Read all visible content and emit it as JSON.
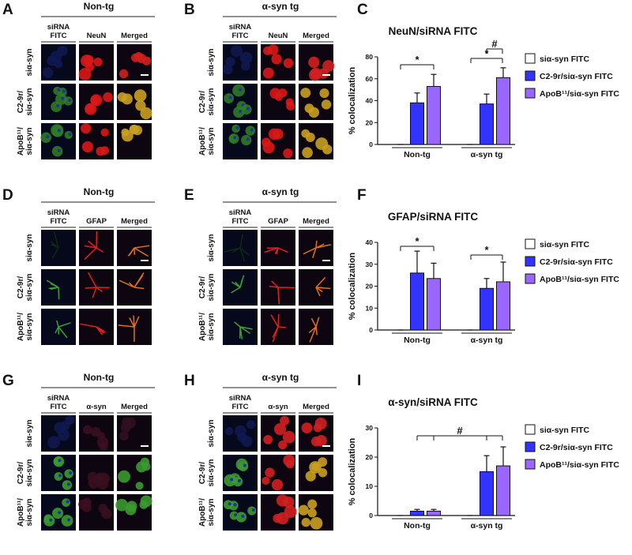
{
  "micrographs": [
    {
      "label": "A",
      "title": "Non-tg",
      "columns": [
        [
          "siRNA",
          "FITC"
        ],
        [
          "NeuN"
        ],
        [
          "Merged"
        ]
      ],
      "rows": [
        [
          "siα-syn"
        ],
        [
          "C2-9r/",
          "siα-syn"
        ],
        [
          "ApoB¹¹/",
          "siα-syn"
        ]
      ]
    },
    {
      "label": "B",
      "title": "α-syn tg",
      "columns": [
        [
          "siRNA",
          "FITC"
        ],
        [
          "NeuN"
        ],
        [
          "Merged"
        ]
      ],
      "rows": [
        [
          "siα-syn"
        ],
        [
          "C2-9r/",
          "siα-syn"
        ],
        [
          "ApoB¹¹/",
          "siα-syn"
        ]
      ]
    },
    {
      "label": "D",
      "title": "Non-tg",
      "columns": [
        [
          "siRNA",
          "FITC"
        ],
        [
          "GFAP"
        ],
        [
          "Merged"
        ]
      ],
      "rows": [
        [
          "siα-syn"
        ],
        [
          "C2-9r/",
          "siα-syn"
        ],
        [
          "ApoB¹¹/",
          "siα-syn"
        ]
      ]
    },
    {
      "label": "E",
      "title": "α-syn tg",
      "columns": [
        [
          "siRNA",
          "FITC"
        ],
        [
          "GFAP"
        ],
        [
          "Merged"
        ]
      ],
      "rows": [
        [
          "siα-syn"
        ],
        [
          "C2-9r/",
          "siα-syn"
        ],
        [
          "ApoB¹¹/",
          "siα-syn"
        ]
      ]
    },
    {
      "label": "G",
      "title": "Non-tg",
      "columns": [
        [
          "siRNA",
          "FITC"
        ],
        [
          "α-syn"
        ],
        [
          "Merged"
        ]
      ],
      "rows": [
        [
          "siα-syn"
        ],
        [
          "C2-9r/",
          "siα-syn"
        ],
        [
          "ApoB¹¹/",
          "siα-syn"
        ]
      ]
    },
    {
      "label": "H",
      "title": "α-syn tg",
      "columns": [
        [
          "siRNA",
          "FITC"
        ],
        [
          "α-syn"
        ],
        [
          "Merged"
        ]
      ],
      "rows": [
        [
          "siα-syn"
        ],
        [
          "C2-9r/",
          "siα-syn"
        ],
        [
          "ApoB¹¹/",
          "siα-syn"
        ]
      ]
    }
  ],
  "chart_data": [
    {
      "type": "bar",
      "label": "C",
      "title": "NeuN/siRNA FITC",
      "y_label": "% colocalization",
      "categories": [
        "Non-tg",
        "α-syn tg"
      ],
      "ylim": [
        0,
        80
      ],
      "yticks": [
        0,
        20,
        40,
        60,
        80
      ],
      "series": [
        {
          "name": "siα-syn FITC",
          "color": "#ffffff",
          "values": [
            0,
            0
          ],
          "errors": [
            0,
            0
          ]
        },
        {
          "name": "C2-9r/siα-syn FITC",
          "color": "#3333ff",
          "values": [
            38,
            37
          ],
          "errors": [
            9,
            9
          ]
        },
        {
          "name": "ApoB¹¹/siα-syn FITC",
          "color": "#9966ff",
          "values": [
            53,
            61
          ],
          "errors": [
            11,
            9
          ]
        }
      ],
      "annotations": [
        "*",
        "*",
        "#"
      ]
    },
    {
      "type": "bar",
      "label": "F",
      "title": "GFAP/siRNA FITC",
      "y_label": "% colocalization",
      "categories": [
        "Non-tg",
        "α-syn tg"
      ],
      "ylim": [
        0,
        40
      ],
      "yticks": [
        0,
        10,
        20,
        30,
        40
      ],
      "series": [
        {
          "name": "siα-syn FITC",
          "color": "#ffffff",
          "values": [
            0,
            0
          ],
          "errors": [
            0,
            0
          ]
        },
        {
          "name": "C2-9r/siα-syn FITC",
          "color": "#3333ff",
          "values": [
            26,
            19
          ],
          "errors": [
            10,
            4.5
          ]
        },
        {
          "name": "ApoB¹¹/siα-syn FITC",
          "color": "#9966ff",
          "values": [
            23.5,
            22
          ],
          "errors": [
            7,
            9
          ]
        }
      ],
      "annotations": [
        "*",
        "*"
      ]
    },
    {
      "type": "bar",
      "label": "I",
      "title": "α-syn/siRNA FITC",
      "y_label": "% colocalization",
      "categories": [
        "Non-tg",
        "α-syn tg"
      ],
      "ylim": [
        0,
        30
      ],
      "yticks": [
        0,
        10,
        20,
        30
      ],
      "series": [
        {
          "name": "siα-syn FITC",
          "color": "#ffffff",
          "values": [
            0,
            0
          ],
          "errors": [
            0,
            0
          ]
        },
        {
          "name": "C2-9r/siα-syn FITC",
          "color": "#3333ff",
          "values": [
            1.5,
            15
          ],
          "errors": [
            0.6,
            5.5
          ]
        },
        {
          "name": "ApoB¹¹/siα-syn FITC",
          "color": "#9966ff",
          "values": [
            1.5,
            17
          ],
          "errors": [
            0.6,
            6.5
          ]
        }
      ],
      "annotations": [
        "#"
      ]
    }
  ]
}
